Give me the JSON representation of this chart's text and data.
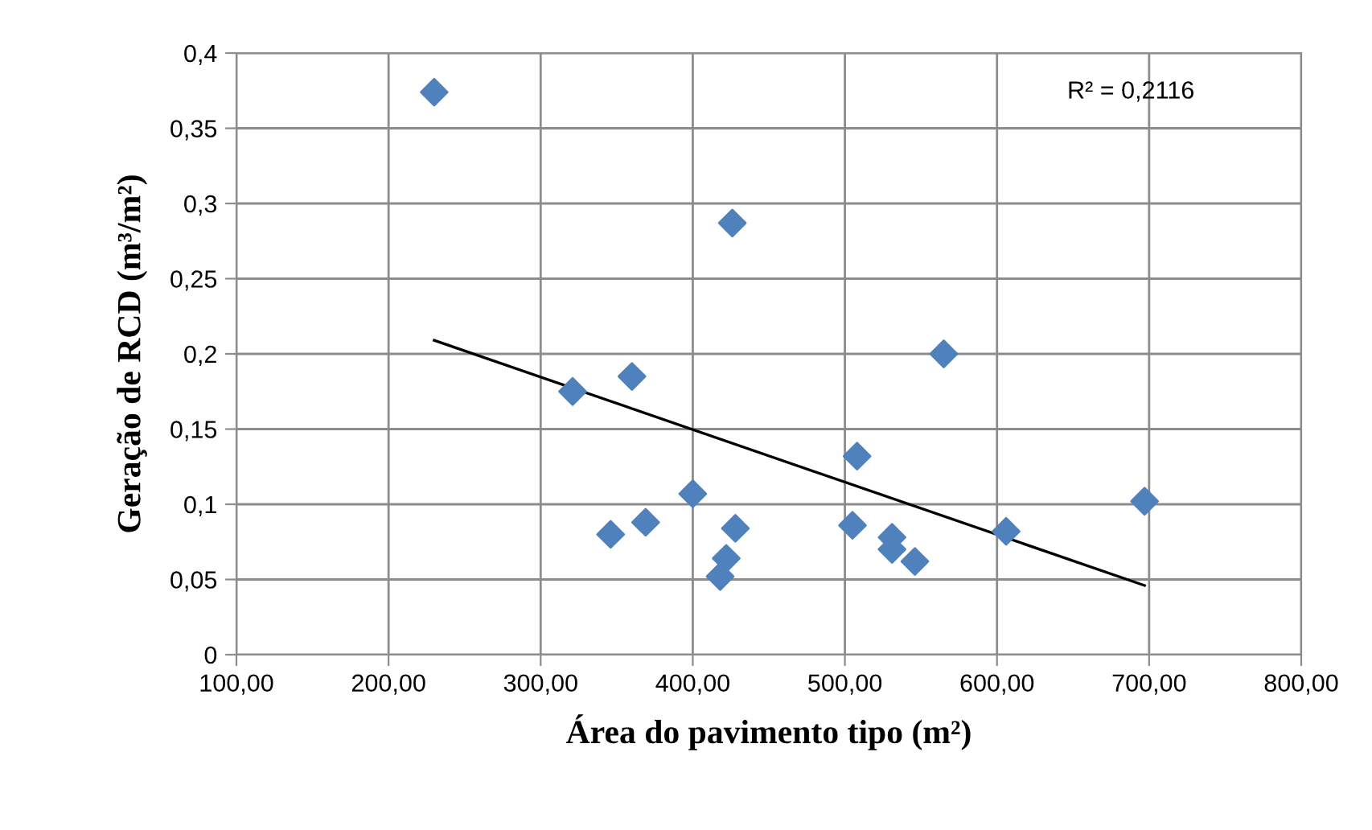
{
  "chart_data": {
    "type": "scatter",
    "xlabel": "Área do pavimento tipo (m²)",
    "ylabel": "Geração de RCD (m³/m²)",
    "annotations": [
      "R² = 0,2116"
    ],
    "xlim": [
      100,
      800
    ],
    "ylim": [
      0,
      0.4
    ],
    "xticks": [
      {
        "value": 100,
        "label": "100,00"
      },
      {
        "value": 200,
        "label": "200,00"
      },
      {
        "value": 300,
        "label": "300,00"
      },
      {
        "value": 400,
        "label": "400,00"
      },
      {
        "value": 500,
        "label": "500,00"
      },
      {
        "value": 600,
        "label": "600,00"
      },
      {
        "value": 700,
        "label": "700,00"
      },
      {
        "value": 800,
        "label": "800,00"
      }
    ],
    "yticks": [
      0,
      {
        "value": 0.05,
        "label": "0,05"
      },
      {
        "value": 0.1,
        "label": "0,1"
      },
      {
        "value": 0.15,
        "label": "0,15"
      },
      {
        "value": 0.2,
        "label": "0,2"
      },
      {
        "value": 0.25,
        "label": "0,25"
      },
      {
        "value": 0.3,
        "label": "0,3"
      },
      {
        "value": 0.35,
        "label": "0,35"
      },
      {
        "value": 0.4,
        "label": "0,4"
      }
    ],
    "grid": true,
    "marker": "diamond",
    "legend": false,
    "series": [
      {
        "color": "#4f81bd",
        "x": [
          230,
          321,
          360,
          346,
          369,
          400,
          428,
          422,
          418,
          426,
          565,
          508,
          505,
          531,
          531,
          546,
          606,
          697
        ],
        "values": [
          0.374,
          0.175,
          0.185,
          0.08,
          0.088,
          0.107,
          0.084,
          0.064,
          0.052,
          0.287,
          0.2,
          0.132,
          0.086,
          0.078,
          0.07,
          0.062,
          0.082,
          0.102
        ]
      },
      {
        "type": "line",
        "color": "#000000",
        "marker": "none",
        "x": [
          230,
          697
        ],
        "values": [
          0.209,
          0.046
        ]
      }
    ]
  }
}
